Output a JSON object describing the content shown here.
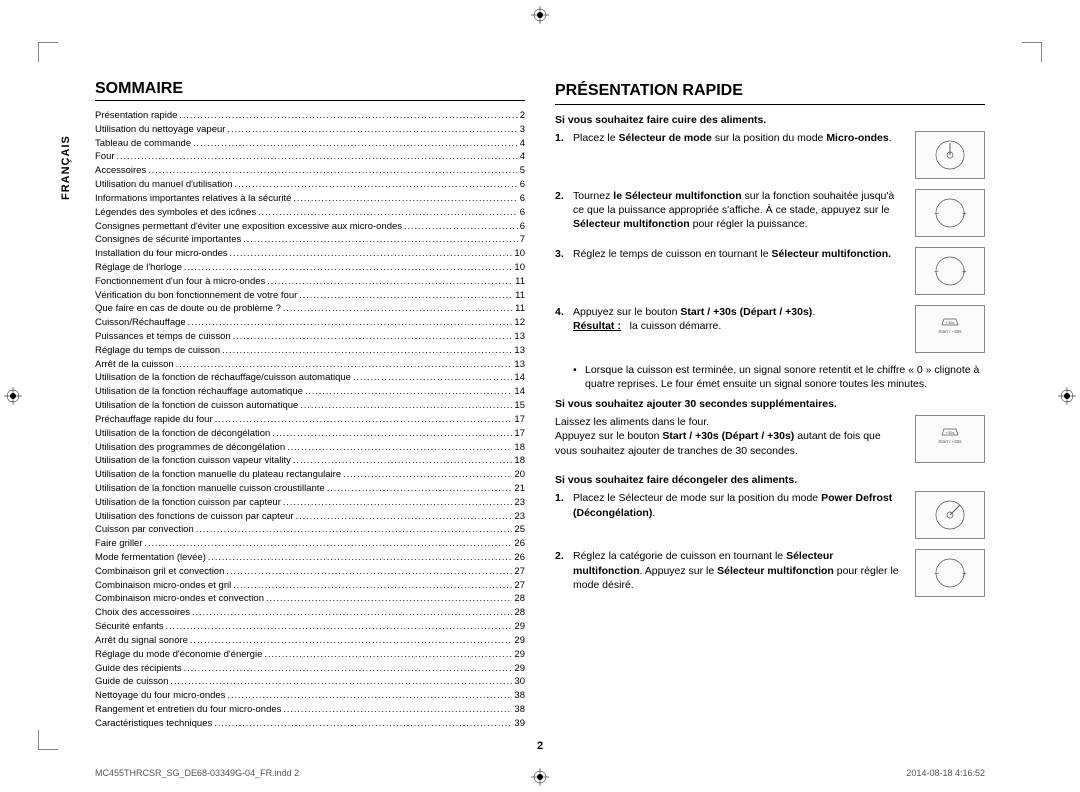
{
  "lang_tab": "FRANÇAIS",
  "page_number": "2",
  "footer": {
    "left": "MC455THRCSR_SG_DE68-03349G-04_FR.indd   2",
    "right": "2014-08-18   4:16:52"
  },
  "sommaire": {
    "title": "Sommaire",
    "items": [
      {
        "label": "Présentation rapide",
        "page": "2"
      },
      {
        "label": "Utilisation du nettoyage vapeur",
        "page": "3"
      },
      {
        "label": "Tableau de commande",
        "page": "4"
      },
      {
        "label": "Four",
        "page": "4"
      },
      {
        "label": "Accessoires",
        "page": "5"
      },
      {
        "label": "Utilisation du manuel d'utilisation",
        "page": "6"
      },
      {
        "label": "Informations importantes relatives à la sécurité",
        "page": "6"
      },
      {
        "label": "Légendes des symboles et des icônes",
        "page": "6"
      },
      {
        "label": "Consignes permettant d'éviter une exposition excessive aux micro-ondes",
        "page": "6"
      },
      {
        "label": "Consignes de sécurité importantes",
        "page": "7"
      },
      {
        "label": "Installation du four micro-ondes",
        "page": "10"
      },
      {
        "label": "Réglage de l'horloge",
        "page": "10"
      },
      {
        "label": "Fonctionnement d'un four à micro-ondes",
        "page": "11"
      },
      {
        "label": "Vérification du bon fonctionnement de votre four",
        "page": "11"
      },
      {
        "label": "Que faire en cas de doute ou de problème ?",
        "page": "11"
      },
      {
        "label": "Cuisson/Réchauffage",
        "page": "12"
      },
      {
        "label": "Puissances et temps de cuisson",
        "page": "13"
      },
      {
        "label": "Réglage du temps de cuisson",
        "page": "13"
      },
      {
        "label": "Arrêt de la cuisson",
        "page": "13"
      },
      {
        "label": "Utilisation de la fonction de réchauffage/cuisson automatique",
        "page": "14"
      },
      {
        "label": "Utilisation de la fonction réchauffage automatique",
        "page": "14"
      },
      {
        "label": "Utilisation de la fonction de cuisson automatique",
        "page": "15"
      },
      {
        "label": "Préchauffage rapide du four",
        "page": "17"
      },
      {
        "label": "Utilisation de la fonction de décongélation",
        "page": "17"
      },
      {
        "label": "Utilisation des programmes de décongélation",
        "page": "18"
      },
      {
        "label": "Utilisation de la fonction cuisson vapeur vitality",
        "page": "18"
      },
      {
        "label": "Utilisation de la fonction manuelle du plateau rectangulaire",
        "page": "20"
      },
      {
        "label": "Utilisation de la fonction manuelle cuisson croustillante",
        "page": "21"
      },
      {
        "label": "Utilisation de la fonction cuisson par capteur",
        "page": "23"
      },
      {
        "label": "Utilisation des fonctions de cuisson par capteur",
        "page": "23"
      },
      {
        "label": "Cuisson par convection",
        "page": "25"
      },
      {
        "label": "Faire griller",
        "page": "26"
      },
      {
        "label": "Mode fermentation (levée)",
        "page": "26"
      },
      {
        "label": "Combinaison gril et convection",
        "page": "27"
      },
      {
        "label": "Combinaison micro-ondes et gril",
        "page": "27"
      },
      {
        "label": "Combinaison micro-ondes et convection",
        "page": "28"
      },
      {
        "label": "Choix des accessoires",
        "page": "28"
      },
      {
        "label": "Sécurité enfants",
        "page": "29"
      },
      {
        "label": "Arrêt du signal sonore",
        "page": "29"
      },
      {
        "label": "Réglage du mode d'économie d'énergie",
        "page": "29"
      },
      {
        "label": "Guide des récipients",
        "page": "29"
      },
      {
        "label": "Guide de cuisson",
        "page": "30"
      },
      {
        "label": "Nettoyage du four micro-ondes",
        "page": "38"
      },
      {
        "label": "Rangement et entretien du four micro-ondes",
        "page": "38"
      },
      {
        "label": "Caractéristiques techniques",
        "page": "39"
      }
    ]
  },
  "presentation": {
    "title": "Présentation rapide",
    "section1_heading": "Si vous souhaitez faire cuire des aliments.",
    "step1": {
      "num": "1.",
      "text_pre": "Placez le ",
      "bold1": "Sélecteur de mode",
      "text_mid": " sur la position du mode ",
      "bold2": "Micro-ondes",
      "text_post": "."
    },
    "step2": {
      "num": "2.",
      "line1_pre": "Tournez ",
      "line1_bold": "le Sélecteur multifonction",
      "line1_post": " sur la fonction souhaitée jusqu'à ce que la puissance appropriée s'affiche. À ce stade, appuyez sur le ",
      "line1_bold2": "Sélecteur multifonction",
      "line1_end": " pour régler la puissance."
    },
    "step3": {
      "num": "3.",
      "text": "Réglez le temps de cuisson en tournant le ",
      "bold": "Sélecteur multifonction."
    },
    "step4": {
      "num": "4.",
      "text": "Appuyez sur le bouton ",
      "bold": "Start / +30s (Départ / +30s)",
      "post": ".",
      "result_label": "Résultat :",
      "result_text": "la cuisson démarre.",
      "bullet1": "Lorsque la cuisson est terminée, un signal sonore retentit et le chiffre « 0 » clignote à quatre reprises. Le four émet ensuite un signal sonore toutes les minutes."
    },
    "section2_heading": "Si vous souhaitez ajouter 30 secondes supplémentaires.",
    "section2_line1": "Laissez les aliments dans le four.",
    "section2_line2_pre": "Appuyez sur le bouton  ",
    "section2_line2_bold": "Start / +30s (Départ / +30s)",
    "section2_line2_post": " autant de fois que vous souhaitez ajouter de tranches de 30 secondes.",
    "section3_heading": "Si vous souhaitez faire décongeler des aliments.",
    "step3_1": {
      "num": "1.",
      "text": "Placez le Sélecteur de mode sur la position du mode ",
      "bold": "Power Defrost (Décongélation)",
      "post": "."
    },
    "step3_2": {
      "num": "2.",
      "text_pre": "Réglez la catégorie de cuisson en tournant le ",
      "bold1": "Sélecteur multifonction",
      "mid": ". Appuyez sur le ",
      "bold2": "Sélecteur multifonction",
      "post": " pour régler le mode désiré."
    }
  }
}
